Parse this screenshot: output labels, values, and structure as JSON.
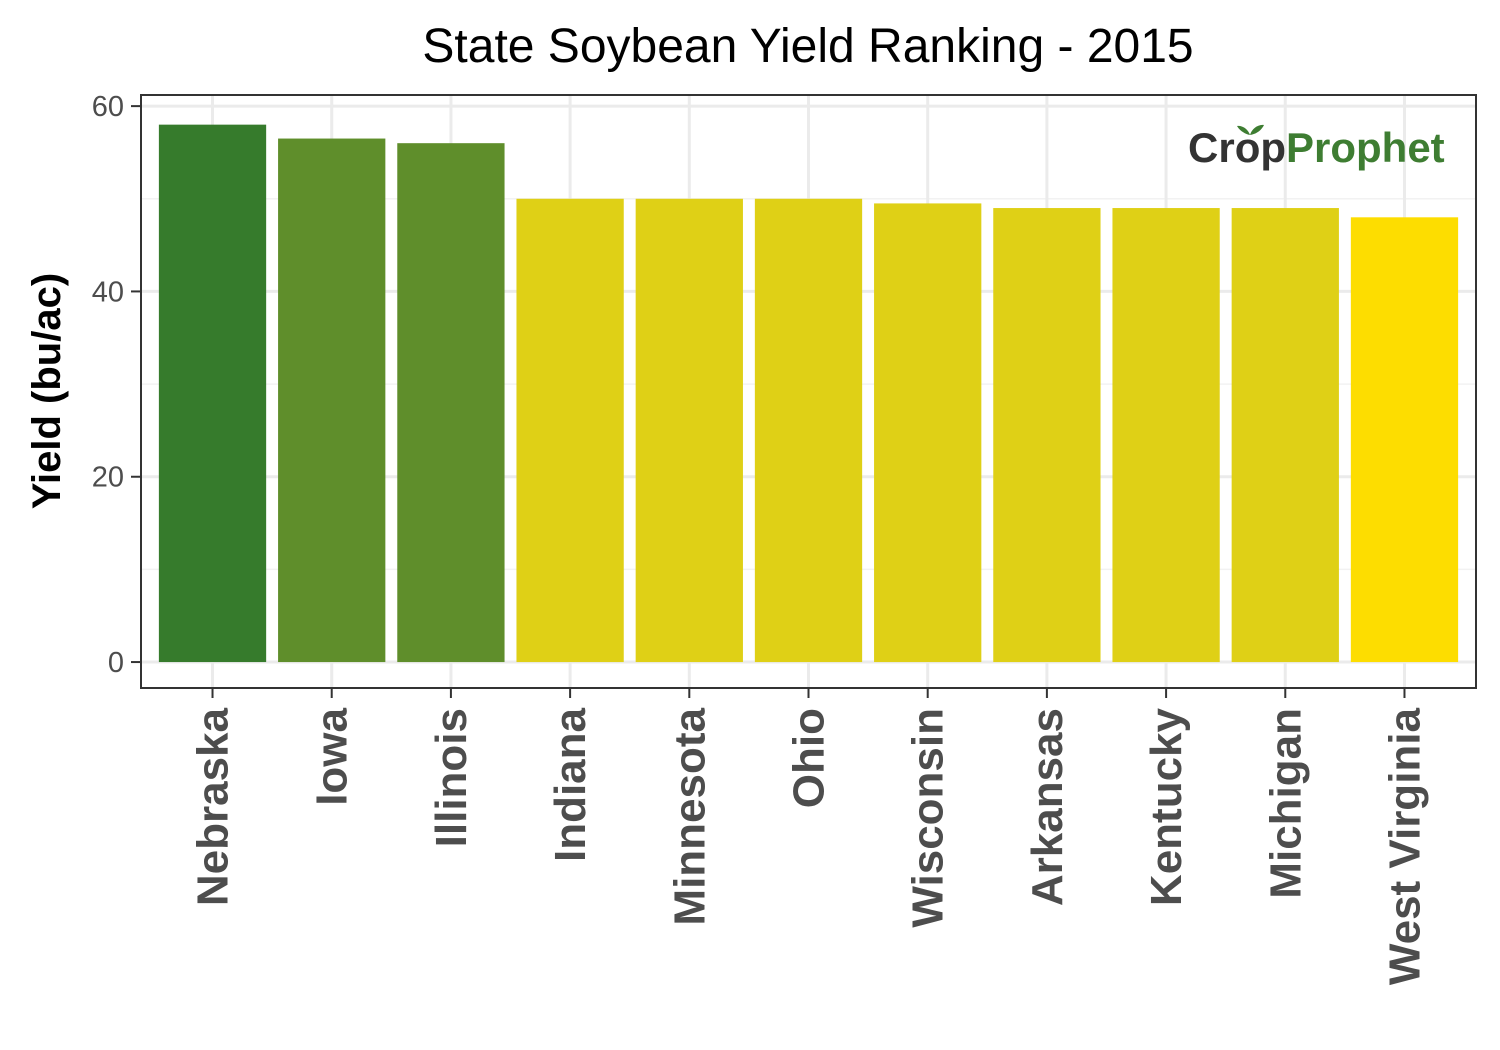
{
  "chart_data": {
    "type": "bar",
    "title": "State Soybean Yield Ranking - 2015",
    "xlabel": "",
    "ylabel": "Yield (bu/ac)",
    "ylim": [
      -2.8,
      61.2
    ],
    "yticks": [
      0,
      20,
      40,
      60
    ],
    "yticks_minor": [
      10,
      30,
      50
    ],
    "grid": true,
    "categories": [
      "Nebraska",
      "Iowa",
      "Illinois",
      "Indiana",
      "Minnesota",
      "Ohio",
      "Wisconsin",
      "Arkansas",
      "Kentucky",
      "Michigan",
      "West Virginia"
    ],
    "values": [
      58,
      56.5,
      56,
      50,
      50,
      50,
      49.5,
      49,
      49,
      49,
      48
    ],
    "bar_colors": [
      "#367b2c",
      "#5f8e2b",
      "#5f8e2b",
      "#dfd016",
      "#dfd016",
      "#dfd016",
      "#dfd016",
      "#dfd016",
      "#dfd016",
      "#dfd016",
      "#fddd00"
    ]
  },
  "logo": {
    "text_a": "Cr",
    "text_b": "p",
    "text_c": "Prophet",
    "color_dark": "#333333",
    "color_green": "#3e7d32"
  }
}
